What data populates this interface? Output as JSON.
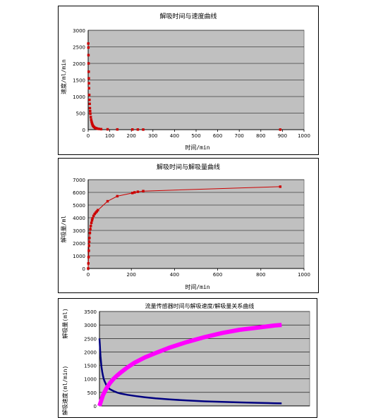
{
  "chart_data": [
    {
      "type": "scatter",
      "title": "解吸时间与速度曲线",
      "xlabel": "时间/min",
      "ylabel": "速度/ml/min",
      "xlim": [
        0,
        1000
      ],
      "ylim": [
        0,
        3000
      ],
      "xticks": [
        0,
        100,
        200,
        300,
        400,
        500,
        600,
        700,
        800,
        900,
        1000
      ],
      "yticks": [
        0,
        500,
        1000,
        1500,
        2000,
        2500,
        3000
      ],
      "grid": true,
      "plot_background": "#c0c0c0",
      "series": [
        {
          "color": "#cc0000",
          "x": [
            0.5,
            1,
            1.5,
            2,
            2.5,
            3,
            3.5,
            4,
            5,
            6,
            7,
            8,
            9,
            10,
            12,
            14,
            16,
            18,
            20,
            22,
            25,
            28,
            32,
            36,
            40,
            45,
            50,
            60,
            90,
            135,
            205,
            230,
            255,
            890
          ],
          "y": [
            2600,
            2480,
            2250,
            2000,
            1750,
            1550,
            1400,
            1250,
            1050,
            900,
            780,
            650,
            560,
            480,
            380,
            300,
            240,
            190,
            150,
            120,
            95,
            75,
            55,
            45,
            35,
            28,
            22,
            15,
            10,
            7,
            5,
            4,
            3,
            2
          ]
        }
      ]
    },
    {
      "type": "line",
      "title": "解吸时间与解吸量曲线",
      "xlabel": "时间/min",
      "ylabel": "解吸量/ml",
      "xlim": [
        0,
        1000
      ],
      "ylim": [
        0,
        7000
      ],
      "xticks": [
        0,
        200,
        400,
        600,
        800,
        1000
      ],
      "yticks": [
        0,
        1000,
        2000,
        3000,
        4000,
        5000,
        6000,
        7000
      ],
      "grid": true,
      "plot_background": "#c0c0c0",
      "series": [
        {
          "color": "#cc0000",
          "x": [
            0,
            1,
            2,
            3,
            4,
            5,
            6,
            8,
            10,
            12,
            15,
            18,
            20,
            25,
            30,
            35,
            40,
            45,
            90,
            135,
            205,
            215,
            230,
            255,
            890
          ],
          "y": [
            0,
            400,
            900,
            1400,
            1800,
            2100,
            2400,
            2800,
            3100,
            3350,
            3600,
            3800,
            3950,
            4150,
            4300,
            4400,
            4500,
            4600,
            5300,
            5700,
            5950,
            6000,
            6050,
            6100,
            6450
          ]
        }
      ]
    },
    {
      "type": "line",
      "title": "流量传感器时间与解吸速度/解吸量关系曲线",
      "ylabel_top": "解吸量(ml)",
      "ylabel_bottom": "解吸速度(ml/min)",
      "xlim": [
        0,
        600
      ],
      "ylim": [
        0,
        3500
      ],
      "yticks": [
        0,
        500,
        1000,
        1500,
        2000,
        2500,
        3000,
        3500
      ],
      "grid": true,
      "plot_background": "#c0c0c0",
      "series": [
        {
          "color": "#000080",
          "x": [
            0,
            1,
            2,
            3,
            4,
            5,
            6,
            8,
            10,
            12,
            15,
            18,
            20,
            25,
            30,
            40,
            50,
            60,
            80,
            100,
            130,
            160,
            200,
            250,
            300,
            350,
            400,
            450,
            500,
            520
          ],
          "y": [
            2500,
            2300,
            2050,
            1850,
            1700,
            1550,
            1420,
            1250,
            1120,
            1000,
            900,
            820,
            760,
            680,
            620,
            550,
            500,
            460,
            410,
            370,
            320,
            280,
            240,
            200,
            170,
            150,
            130,
            115,
            100,
            95
          ]
        },
        {
          "color": "#ff00ff",
          "x": [
            0,
            5,
            10,
            20,
            30,
            40,
            50,
            60,
            80,
            100,
            130,
            160,
            200,
            250,
            300,
            350,
            400,
            450,
            500,
            520
          ],
          "y": [
            0,
            200,
            400,
            650,
            850,
            1000,
            1120,
            1230,
            1430,
            1600,
            1800,
            1960,
            2160,
            2370,
            2550,
            2700,
            2820,
            2900,
            2980,
            3000
          ]
        }
      ]
    }
  ]
}
